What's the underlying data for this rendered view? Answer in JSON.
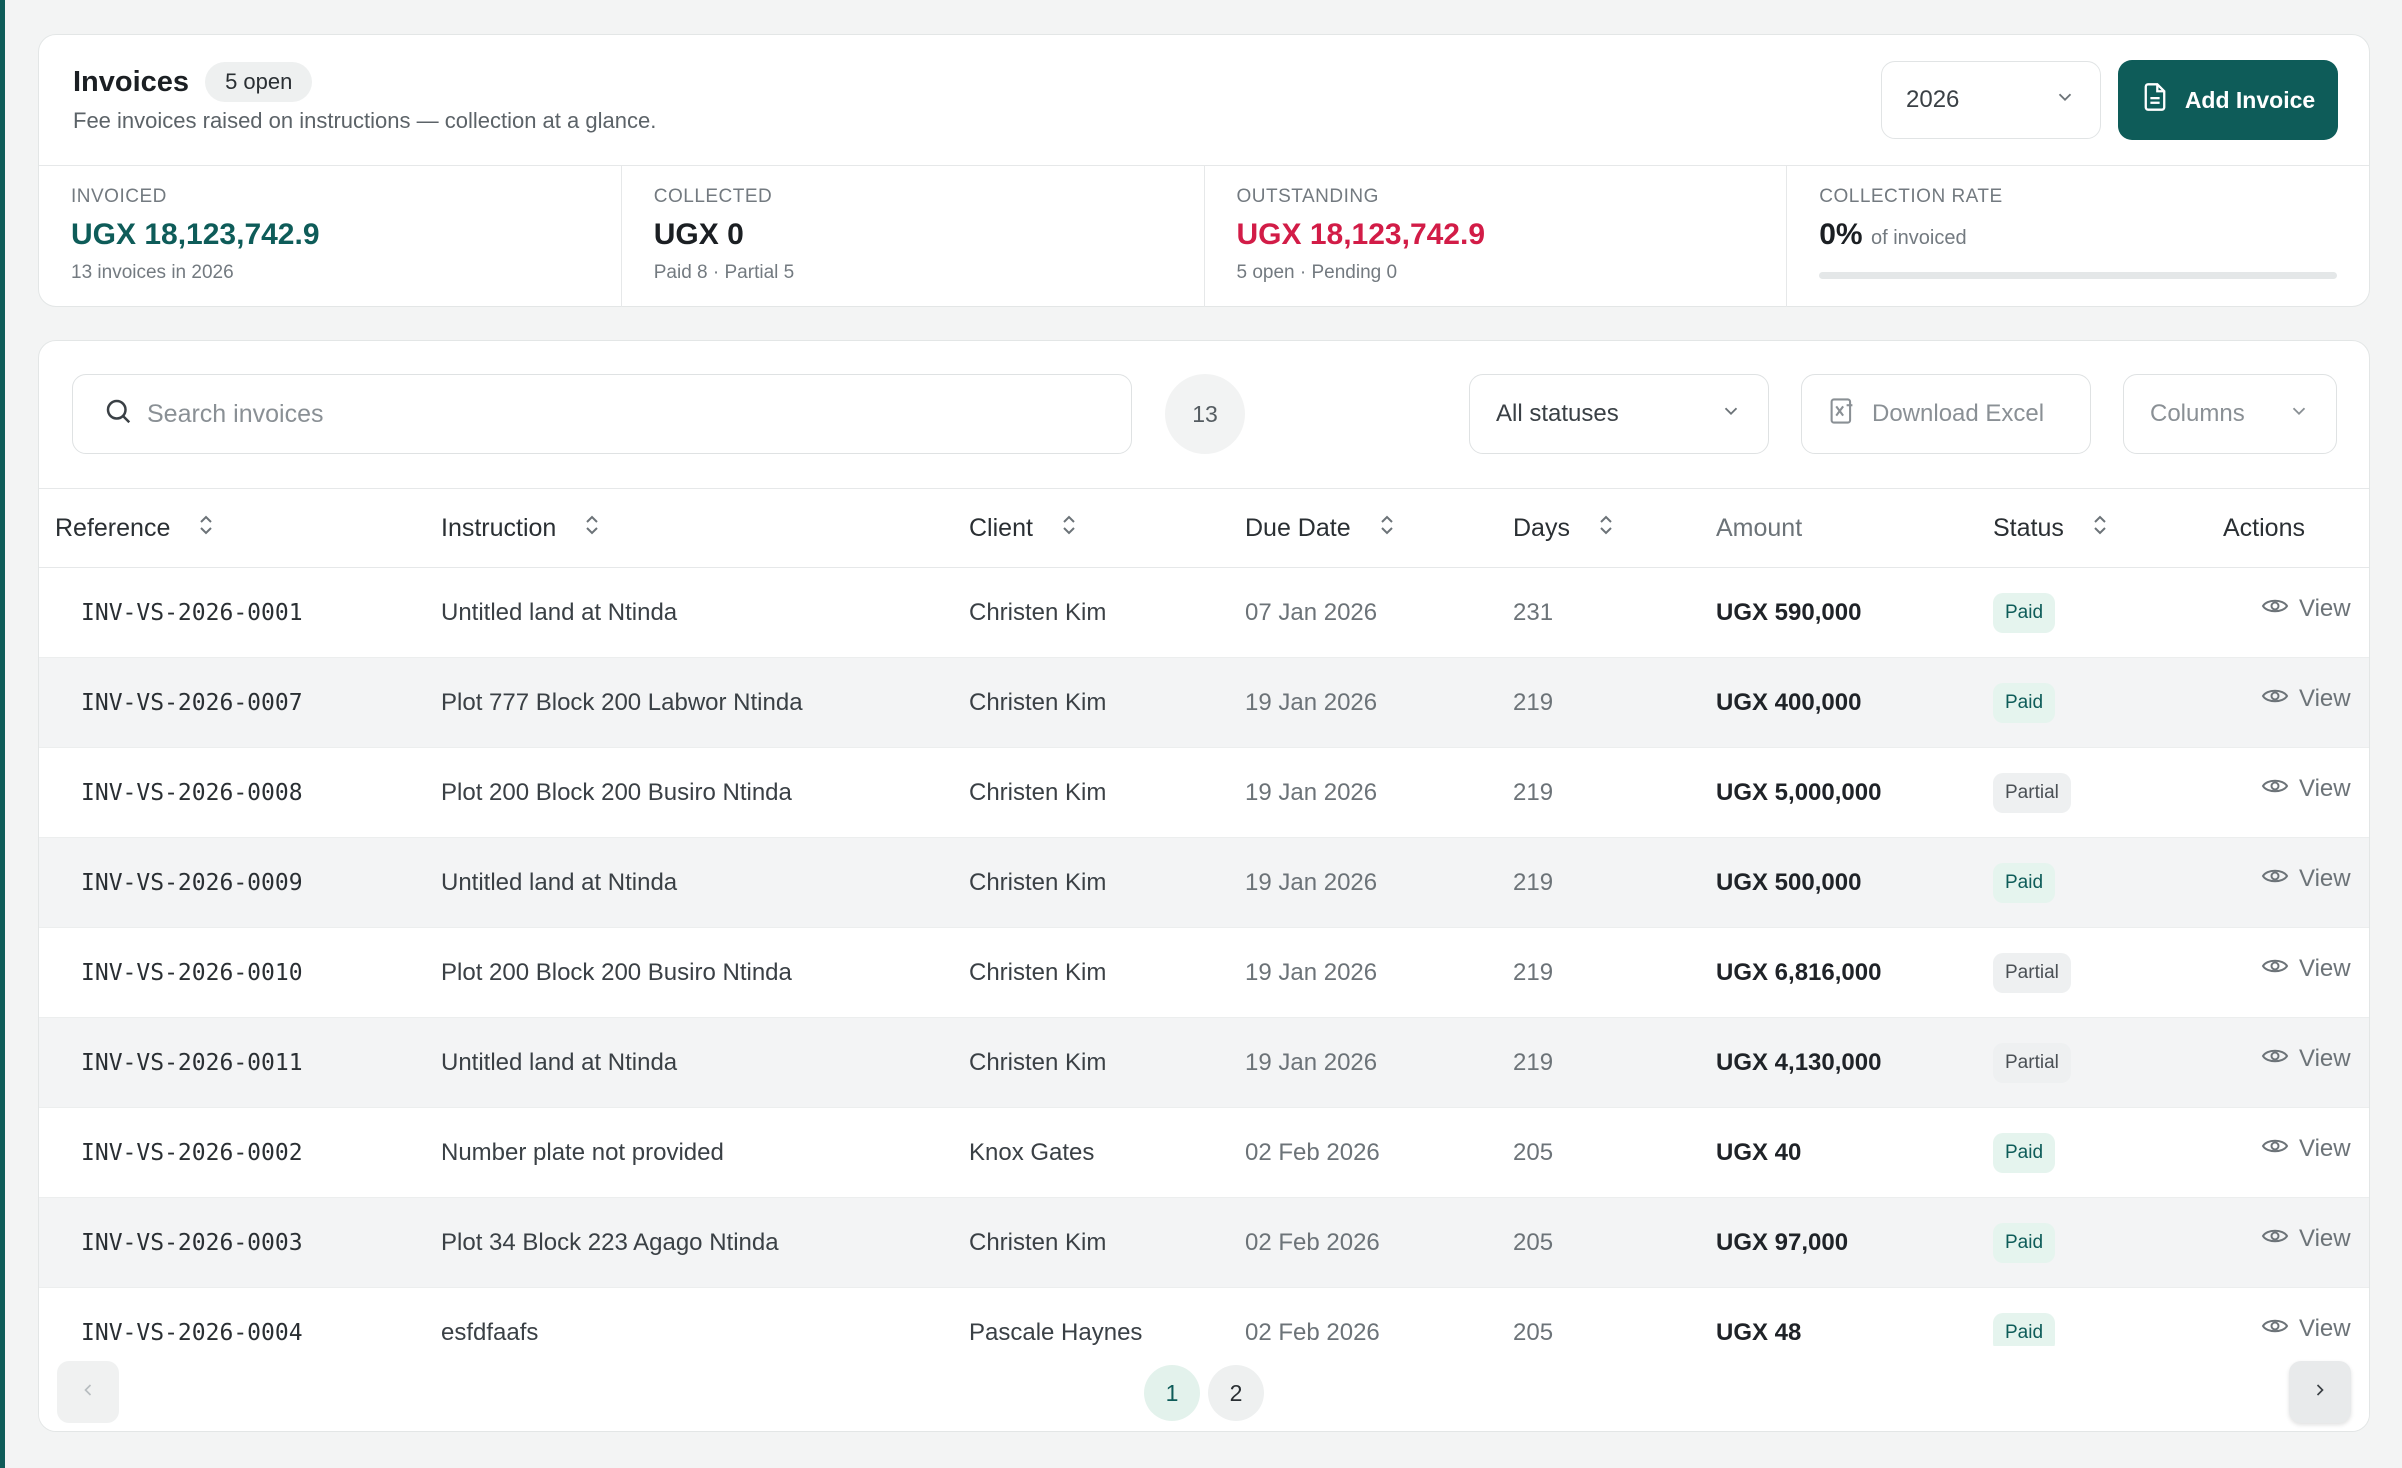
{
  "header": {
    "title": "Invoices",
    "open_badge": "5 open",
    "subtitle": "Fee invoices raised on instructions — collection at a glance.",
    "year": "2026",
    "add_button": "Add Invoice"
  },
  "stats": {
    "invoiced": {
      "label": "INVOICED",
      "value": "UGX 18,123,742.9",
      "foot": "13 invoices in 2026"
    },
    "collected": {
      "label": "COLLECTED",
      "value": "UGX 0",
      "foot": "Paid 8 · Partial 5"
    },
    "outstanding": {
      "label": "OUTSTANDING",
      "value": "UGX 18,123,742.9",
      "foot": "5 open · Pending 0"
    },
    "rate": {
      "label": "COLLECTION RATE",
      "value": "0%",
      "suffix": "of invoiced",
      "progress": 0
    }
  },
  "toolbar": {
    "search_placeholder": "Search invoices",
    "count": "13",
    "status_filter": "All statuses",
    "download": "Download Excel",
    "columns": "Columns"
  },
  "columns": {
    "reference": "Reference",
    "instruction": "Instruction",
    "client": "Client",
    "due_date": "Due Date",
    "days": "Days",
    "amount": "Amount",
    "status": "Status",
    "actions": "Actions"
  },
  "rows": [
    {
      "ref": "INV-VS-2026-0001",
      "instruction": "Untitled land at Ntinda",
      "client": "Christen Kim",
      "due": "07 Jan 2026",
      "days": "231",
      "amount": "UGX 590,000",
      "status": "Paid",
      "action": "View"
    },
    {
      "ref": "INV-VS-2026-0007",
      "instruction": "Plot 777 Block 200 Labwor Ntinda",
      "client": "Christen Kim",
      "due": "19 Jan 2026",
      "days": "219",
      "amount": "UGX 400,000",
      "status": "Paid",
      "action": "View"
    },
    {
      "ref": "INV-VS-2026-0008",
      "instruction": "Plot 200 Block 200 Busiro Ntinda",
      "client": "Christen Kim",
      "due": "19 Jan 2026",
      "days": "219",
      "amount": "UGX 5,000,000",
      "status": "Partial",
      "action": "View"
    },
    {
      "ref": "INV-VS-2026-0009",
      "instruction": "Untitled land at Ntinda",
      "client": "Christen Kim",
      "due": "19 Jan 2026",
      "days": "219",
      "amount": "UGX 500,000",
      "status": "Paid",
      "action": "View"
    },
    {
      "ref": "INV-VS-2026-0010",
      "instruction": "Plot 200 Block 200 Busiro Ntinda",
      "client": "Christen Kim",
      "due": "19 Jan 2026",
      "days": "219",
      "amount": "UGX 6,816,000",
      "status": "Partial",
      "action": "View"
    },
    {
      "ref": "INV-VS-2026-0011",
      "instruction": "Untitled land at Ntinda",
      "client": "Christen Kim",
      "due": "19 Jan 2026",
      "days": "219",
      "amount": "UGX 4,130,000",
      "status": "Partial",
      "action": "View"
    },
    {
      "ref": "INV-VS-2026-0002",
      "instruction": "Number plate not provided",
      "client": "Knox Gates",
      "due": "02 Feb 2026",
      "days": "205",
      "amount": "UGX 40",
      "status": "Paid",
      "action": "View"
    },
    {
      "ref": "INV-VS-2026-0003",
      "instruction": "Plot 34 Block 223 Agago Ntinda",
      "client": "Christen Kim",
      "due": "02 Feb 2026",
      "days": "205",
      "amount": "UGX 97,000",
      "status": "Paid",
      "action": "View"
    },
    {
      "ref": "INV-VS-2026-0004",
      "instruction": "esfdfaafs",
      "client": "Pascale Haynes",
      "due": "02 Feb 2026",
      "days": "205",
      "amount": "UGX 48",
      "status": "Paid",
      "action": "View"
    }
  ],
  "pagination": {
    "pages": [
      "1",
      "2"
    ],
    "current": "1"
  },
  "colors": {
    "brand": "#0e5c59",
    "danger": "#d21c47",
    "paid_bg": "#e5f4ee"
  }
}
